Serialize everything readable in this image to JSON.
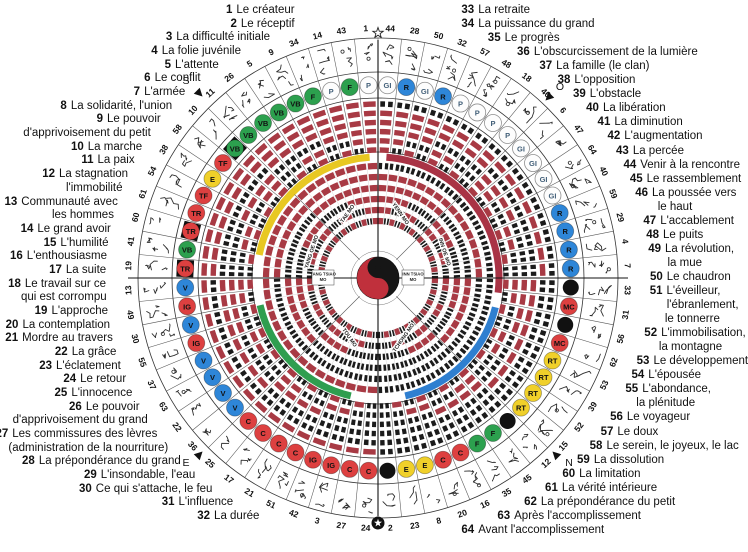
{
  "diagram": {
    "compass": {
      "south": "S",
      "west": "O",
      "east": "E",
      "north": "N"
    },
    "center_symbol": "yin-yang",
    "vessel_labels": {
      "nw": "TAE MO",
      "ne": "YENN MO",
      "sw": "TOU MO",
      "se": "TCHONG MO",
      "west_rotated": "YANG OE MO",
      "east_rotated": "INN OE MO",
      "west_box": [
        "YANG TSIAO",
        "MO"
      ],
      "east_box": [
        "INN TSIAO",
        "MO"
      ]
    },
    "fuxi_ring_clockwise_from_top": [
      44,
      28,
      50,
      32,
      57,
      48,
      18,
      46,
      6,
      47,
      64,
      40,
      59,
      29,
      4,
      7,
      33,
      31,
      56,
      62,
      53,
      39,
      52,
      15,
      12,
      45,
      35,
      16,
      20,
      8,
      23,
      2,
      24,
      27,
      3,
      42,
      51,
      21,
      17,
      25,
      36,
      22,
      63,
      37,
      55,
      30,
      49,
      13,
      19,
      41,
      60,
      61,
      54,
      38,
      58,
      10,
      11,
      26,
      5,
      9,
      34,
      14,
      43,
      1
    ],
    "meridian_badges_clockwise_from_top": [
      "GI",
      "R",
      "GI",
      "R",
      "P",
      "P",
      "P",
      "P",
      "GI",
      "GI",
      "GI",
      "GI",
      "R",
      "R",
      "R",
      "R",
      "DOT",
      "MC",
      "DOT",
      "MC",
      "RT",
      "RT",
      "RT",
      "RT",
      "DOT",
      "F",
      "F",
      "C",
      "C",
      "E",
      "E",
      "DOT",
      "C",
      "C",
      "IG",
      "IG",
      "C",
      "C",
      "C",
      "C",
      "V",
      "V",
      "V",
      "V",
      "IG",
      "V",
      "IG",
      "V",
      "TR*",
      "VB",
      "TR*",
      "TR",
      "TF",
      "E",
      "TF",
      "VB*",
      "VB",
      "VB",
      "VB",
      "VB",
      "F",
      "P",
      "F",
      "P"
    ],
    "badge_colors": {
      "P": "#fdfdfd",
      "GI": "#fdfdfd",
      "E": "#f0d02a",
      "RT": "#f0d02a",
      "C": "#dd4040",
      "IG": "#dd4040",
      "MC": "#dd4040",
      "TR": "#dd4040",
      "TF": "#dd4040",
      "V": "#2e86d8",
      "R": "#2e86d8",
      "VB": "#2ca04e",
      "F": "#2ca04e",
      "DOT": "#111111"
    },
    "line_colors": {
      "yang": "#a83a44",
      "yin": "#1b1b1b"
    },
    "arc_colors": {
      "nw": "#e8c822",
      "ne": "#a93345",
      "se": "#2f7fd0",
      "sw": "#2f9e4f"
    }
  },
  "hexagrams": {
    "left": [
      {
        "n": "1",
        "lines": [
          "Le créateur"
        ]
      },
      {
        "n": "2",
        "lines": [
          "Le réceptif"
        ]
      },
      {
        "n": "3",
        "lines": [
          "La difficulté initiale"
        ]
      },
      {
        "n": "4",
        "lines": [
          "La folie juvénile"
        ]
      },
      {
        "n": "5",
        "lines": [
          "L'attente"
        ]
      },
      {
        "n": "6",
        "lines": [
          "Le conflit"
        ]
      },
      {
        "n": "7",
        "lines": [
          "L'armée"
        ]
      },
      {
        "n": "8",
        "lines": [
          "La solidarité, l'union"
        ]
      },
      {
        "n": "9",
        "lines": [
          "Le pouvoir",
          "d'apprivoisement du petit"
        ]
      },
      {
        "n": "10",
        "lines": [
          "La marche"
        ]
      },
      {
        "n": "11",
        "lines": [
          "La paix"
        ]
      },
      {
        "n": "12",
        "lines": [
          "La stagnation",
          "l'immobilité"
        ]
      },
      {
        "n": "13",
        "lines": [
          "Communauté avec",
          "les hommes"
        ]
      },
      {
        "n": "14",
        "lines": [
          "Le grand avoir"
        ]
      },
      {
        "n": "15",
        "lines": [
          "L'humilité"
        ]
      },
      {
        "n": "16",
        "lines": [
          "L'enthousiasme"
        ]
      },
      {
        "n": "17",
        "lines": [
          "La suite"
        ]
      },
      {
        "n": "18",
        "lines": [
          "Le travail sur ce",
          "qui est corrompu"
        ]
      },
      {
        "n": "19",
        "lines": [
          "L'approche"
        ]
      },
      {
        "n": "20",
        "lines": [
          "La contemplation"
        ]
      },
      {
        "n": "21",
        "lines": [
          "Mordre au travers"
        ]
      },
      {
        "n": "22",
        "lines": [
          "La grâce"
        ]
      },
      {
        "n": "23",
        "lines": [
          "L'éclatement"
        ]
      },
      {
        "n": "24",
        "lines": [
          "Le retour"
        ]
      },
      {
        "n": "25",
        "lines": [
          "L'innocence"
        ]
      },
      {
        "n": "26",
        "lines": [
          "Le pouvoir",
          "d'apprivoisement du grand"
        ]
      },
      {
        "n": "27",
        "lines": [
          "Les commissures des lèvres",
          "(administration de la nourriture)"
        ]
      },
      {
        "n": "28",
        "lines": [
          "La prépondérance du grand"
        ]
      },
      {
        "n": "29",
        "lines": [
          "L'insondable, l'eau"
        ]
      },
      {
        "n": "30",
        "lines": [
          "Ce qui s'attache, le feu"
        ]
      },
      {
        "n": "31",
        "lines": [
          "L'influence"
        ]
      },
      {
        "n": "32",
        "lines": [
          "La durée"
        ]
      }
    ],
    "right": [
      {
        "n": "33",
        "lines": [
          "La retraite"
        ]
      },
      {
        "n": "34",
        "lines": [
          "La puissance du grand"
        ]
      },
      {
        "n": "35",
        "lines": [
          "Le progrès"
        ]
      },
      {
        "n": "36",
        "lines": [
          "L'obscurcissement de la lumière"
        ]
      },
      {
        "n": "37",
        "lines": [
          "La famille (le clan)"
        ]
      },
      {
        "n": "38",
        "lines": [
          "L'opposition"
        ]
      },
      {
        "n": "39",
        "lines": [
          "L'obstacle"
        ]
      },
      {
        "n": "40",
        "lines": [
          "La libération"
        ]
      },
      {
        "n": "41",
        "lines": [
          "La diminution"
        ]
      },
      {
        "n": "42",
        "lines": [
          "L'augmentation"
        ]
      },
      {
        "n": "43",
        "lines": [
          "La percée"
        ]
      },
      {
        "n": "44",
        "lines": [
          "Venir à la rencontre"
        ]
      },
      {
        "n": "45",
        "lines": [
          "Le rassemblement"
        ]
      },
      {
        "n": "46",
        "lines": [
          "La poussée vers",
          "le haut"
        ]
      },
      {
        "n": "47",
        "lines": [
          "L'accablement"
        ]
      },
      {
        "n": "48",
        "lines": [
          "Le puits"
        ]
      },
      {
        "n": "49",
        "lines": [
          "La révolution,",
          "la mue"
        ]
      },
      {
        "n": "50",
        "lines": [
          "Le chaudron"
        ]
      },
      {
        "n": "51",
        "lines": [
          "L'éveilleur,",
          "l'ébranlement,",
          "le tonnerre"
        ]
      },
      {
        "n": "52",
        "lines": [
          "L'immobilisation,",
          "la montagne"
        ]
      },
      {
        "n": "53",
        "lines": [
          "Le développement"
        ]
      },
      {
        "n": "54",
        "lines": [
          "L'épousée"
        ]
      },
      {
        "n": "55",
        "lines": [
          "L'abondance,",
          "la plénitude"
        ]
      },
      {
        "n": "56",
        "lines": [
          "Le voyageur"
        ]
      },
      {
        "n": "57",
        "lines": [
          "Le doux"
        ]
      },
      {
        "n": "58",
        "lines": [
          "Le serein, le joyeux, le lac"
        ]
      },
      {
        "n": "59",
        "lines": [
          "La dissolution"
        ]
      },
      {
        "n": "60",
        "lines": [
          "La limitation"
        ]
      },
      {
        "n": "61",
        "lines": [
          "La vérité intérieure"
        ]
      },
      {
        "n": "62",
        "lines": [
          "La prépondérance du petit"
        ]
      },
      {
        "n": "63",
        "lines": [
          "Après l'accomplissement"
        ]
      },
      {
        "n": "64",
        "lines": [
          "Avant l'accomplissement"
        ]
      }
    ]
  }
}
